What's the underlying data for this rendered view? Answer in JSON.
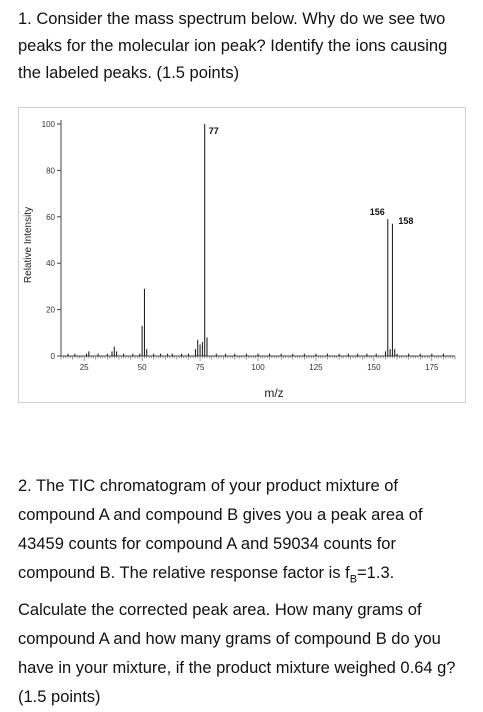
{
  "question1": {
    "text": "1. Consider the mass spectrum below. Why do we see two peaks for the molecular ion peak? Identify the ions causing the labeled peaks. (1.5 points)"
  },
  "question2": {
    "para1_part1": "2. The TIC chromatogram of your product mixture of compound A and compound B gives you a peak area of 43459 counts for compound A and 59034 counts for compound B. The relative response factor is f",
    "para1_sub": "B",
    "para1_part2": "=1.3.",
    "para2": "Calculate the corrected peak area. How many grams of compound A and how many grams of compound B do you have in your mixture, if the product mixture weighed 0.64 g? (1.5 points)"
  },
  "chart_data": {
    "type": "bar",
    "title": "",
    "xlabel": "m/z",
    "ylabel": "Relative Intensity",
    "xlim": [
      15,
      185
    ],
    "ylim": [
      0,
      100
    ],
    "x_ticks": [
      25,
      50,
      75,
      100,
      125,
      150,
      175
    ],
    "y_ticks": [
      0,
      20,
      40,
      60,
      80,
      100
    ],
    "grid": false,
    "peaks": [
      {
        "mz": 18,
        "intensity": 1
      },
      {
        "mz": 21,
        "intensity": 1
      },
      {
        "mz": 26,
        "intensity": 1
      },
      {
        "mz": 27,
        "intensity": 2
      },
      {
        "mz": 31,
        "intensity": 1
      },
      {
        "mz": 35,
        "intensity": 1
      },
      {
        "mz": 37,
        "intensity": 2
      },
      {
        "mz": 38,
        "intensity": 4
      },
      {
        "mz": 39,
        "intensity": 2
      },
      {
        "mz": 42,
        "intensity": 1
      },
      {
        "mz": 46,
        "intensity": 1
      },
      {
        "mz": 49,
        "intensity": 1
      },
      {
        "mz": 50,
        "intensity": 13
      },
      {
        "mz": 51,
        "intensity": 29
      },
      {
        "mz": 52,
        "intensity": 3
      },
      {
        "mz": 55,
        "intensity": 1
      },
      {
        "mz": 58,
        "intensity": 1
      },
      {
        "mz": 61,
        "intensity": 1
      },
      {
        "mz": 63,
        "intensity": 1
      },
      {
        "mz": 67,
        "intensity": 1
      },
      {
        "mz": 70,
        "intensity": 1
      },
      {
        "mz": 73,
        "intensity": 3
      },
      {
        "mz": 74,
        "intensity": 7
      },
      {
        "mz": 75,
        "intensity": 5
      },
      {
        "mz": 76,
        "intensity": 6
      },
      {
        "mz": 77,
        "intensity": 100
      },
      {
        "mz": 78,
        "intensity": 8
      },
      {
        "mz": 82,
        "intensity": 1
      },
      {
        "mz": 86,
        "intensity": 1
      },
      {
        "mz": 90,
        "intensity": 1
      },
      {
        "mz": 95,
        "intensity": 1
      },
      {
        "mz": 100,
        "intensity": 1
      },
      {
        "mz": 105,
        "intensity": 1
      },
      {
        "mz": 110,
        "intensity": 1
      },
      {
        "mz": 115,
        "intensity": 1
      },
      {
        "mz": 120,
        "intensity": 1
      },
      {
        "mz": 125,
        "intensity": 1
      },
      {
        "mz": 130,
        "intensity": 1
      },
      {
        "mz": 135,
        "intensity": 1
      },
      {
        "mz": 139,
        "intensity": 1
      },
      {
        "mz": 143,
        "intensity": 1
      },
      {
        "mz": 147,
        "intensity": 1
      },
      {
        "mz": 151,
        "intensity": 1
      },
      {
        "mz": 155,
        "intensity": 2
      },
      {
        "mz": 156,
        "intensity": 59
      },
      {
        "mz": 157,
        "intensity": 3
      },
      {
        "mz": 158,
        "intensity": 57
      },
      {
        "mz": 159,
        "intensity": 3
      },
      {
        "mz": 160,
        "intensity": 1
      },
      {
        "mz": 165,
        "intensity": 1
      },
      {
        "mz": 170,
        "intensity": 1
      },
      {
        "mz": 175,
        "intensity": 1
      },
      {
        "mz": 180,
        "intensity": 1
      }
    ],
    "labeled_peaks": [
      {
        "mz": 77,
        "label": "77"
      },
      {
        "mz": 156,
        "label": "156"
      },
      {
        "mz": 158,
        "label": "158"
      }
    ]
  }
}
